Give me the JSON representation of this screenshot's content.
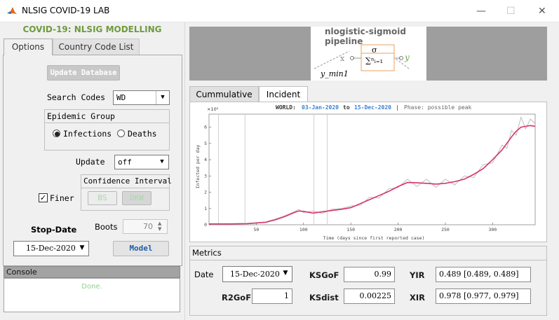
{
  "window": {
    "title": "NLSIG COVID-19 LAB",
    "minimize": "—",
    "maximize": "☐",
    "close": "✕"
  },
  "left": {
    "heading": "COVID-19: NLSIG MODELLING",
    "tabs": [
      "Options",
      "Country Code List"
    ],
    "update_db": "Update Database",
    "search_label": "Search Codes",
    "search_value": "WD",
    "epidemic_group": "Epidemic Group",
    "infections": "Infections",
    "deaths": "Deaths",
    "update_label": "Update",
    "update_value": "off",
    "confidence_interval": "Confidence Interval",
    "bs": "BS",
    "dkw": "DKW",
    "finer": "Finer",
    "boots_label": "Boots",
    "boots_value": "70",
    "stop_date_label": "Stop-Date",
    "stop_date_value": "15-Dec-2020",
    "model_button": "Model",
    "console_label": "Console",
    "console_text": "Done."
  },
  "banner": {
    "title": "nlogistic-sigmoid pipeline",
    "sigma": "σ",
    "sum": "∑ⁿᵢ₌₁",
    "x": "x",
    "y": "y",
    "ymin": "y_min1"
  },
  "plot_tabs": [
    "Cummulative",
    "Incident"
  ],
  "chart_data": {
    "type": "line",
    "header": {
      "prefix": "WORLD:",
      "start": "03-Jan-2020",
      "to": "to",
      "end": "15-Dec-2020",
      "sep": "|",
      "phase": "Phase: possible peak"
    },
    "multiplier": "×10⁵",
    "xlabel": "Time (days since first reported case)",
    "ylabel": "Infected per day",
    "xlim": [
      0,
      345
    ],
    "ylim": [
      0,
      6.8
    ],
    "xticks": [
      50,
      100,
      150,
      200,
      250,
      300
    ],
    "yticks": [
      0,
      1,
      2,
      3,
      4,
      5,
      6
    ],
    "vlines": [
      10,
      38,
      111,
      125
    ],
    "series": [
      {
        "color": "#d6336c",
        "x": [
          0,
          20,
          40,
          60,
          70,
          80,
          90,
          95,
          100,
          110,
          120,
          130,
          140,
          150,
          160,
          170,
          180,
          190,
          200,
          210,
          220,
          230,
          240,
          250,
          260,
          270,
          280,
          290,
          300,
          310,
          315,
          320,
          325,
          330,
          335,
          340,
          345
        ],
        "y": [
          0.05,
          0.05,
          0.07,
          0.15,
          0.3,
          0.5,
          0.75,
          0.85,
          0.82,
          0.72,
          0.8,
          0.88,
          0.95,
          1.05,
          1.3,
          1.55,
          1.8,
          2.05,
          2.35,
          2.6,
          2.58,
          2.55,
          2.5,
          2.55,
          2.65,
          2.8,
          3.1,
          3.45,
          4.0,
          4.6,
          5.0,
          5.4,
          5.75,
          6.0,
          6.05,
          6.1,
          6.05
        ]
      },
      {
        "color": "#bdbdbd",
        "x": [
          0,
          20,
          40,
          60,
          70,
          80,
          90,
          95,
          100,
          110,
          120,
          130,
          140,
          150,
          160,
          170,
          180,
          190,
          200,
          210,
          220,
          230,
          240,
          250,
          260,
          270,
          280,
          290,
          300,
          310,
          315,
          320,
          325,
          330,
          335,
          340,
          345
        ],
        "y": [
          0.03,
          0.06,
          0.08,
          0.18,
          0.35,
          0.55,
          0.8,
          0.95,
          0.75,
          0.85,
          0.7,
          0.95,
          1.0,
          1.15,
          1.2,
          1.7,
          1.65,
          2.2,
          2.3,
          2.8,
          2.35,
          2.8,
          2.3,
          2.8,
          2.45,
          3.0,
          2.9,
          3.7,
          3.8,
          4.9,
          4.7,
          5.8,
          5.5,
          6.6,
          5.9,
          6.5,
          6.2
        ]
      }
    ]
  },
  "metrics": {
    "title": "Metrics",
    "date_label": "Date",
    "date_value": "15-Dec-2020",
    "ksgof_label": "KSGoF",
    "ksgof_value": "0.99",
    "yir_label": "YIR",
    "yir_value": "0.489 [0.489, 0.489]",
    "r2gof_label": "R2GoF",
    "r2gof_value": "1",
    "ksdist_label": "KSdist",
    "ksdist_value": "0.00225",
    "xir_label": "XIR",
    "xir_value": "0.978 [0.977, 0.979]"
  }
}
